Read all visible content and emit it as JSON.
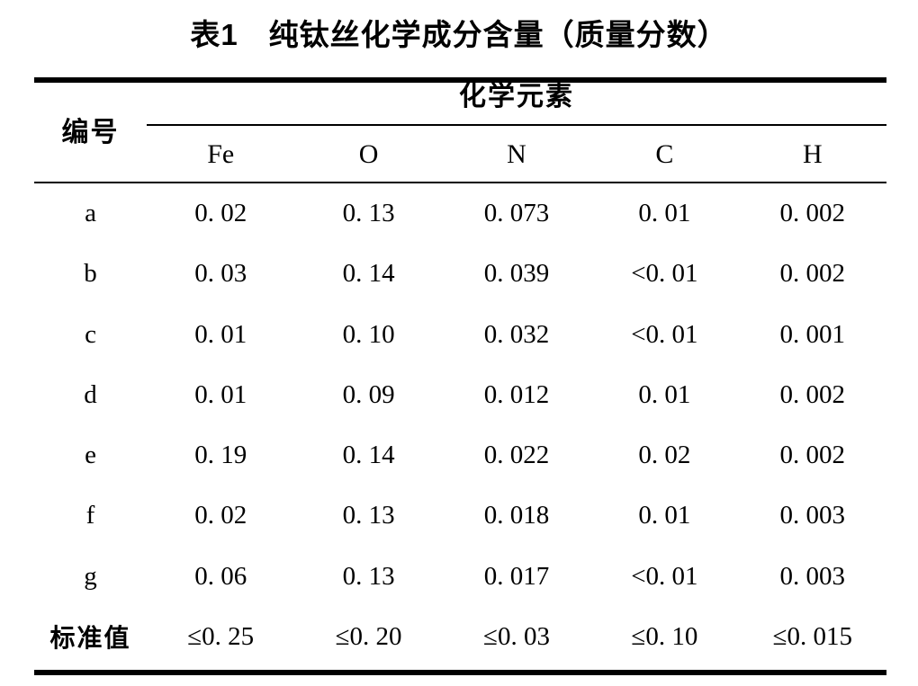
{
  "title": "表1　纯钛丝化学成分含量（质量分数）",
  "table": {
    "corner_label": "编号",
    "group_header": "化学元素",
    "columns": [
      "Fe",
      "O",
      "N",
      "C",
      "H"
    ],
    "rows": [
      {
        "label": "a",
        "values": [
          "0. 02",
          "0. 13",
          "0. 073",
          "0. 01",
          "0. 002"
        ]
      },
      {
        "label": "b",
        "values": [
          "0. 03",
          "0. 14",
          "0. 039",
          "<0. 01",
          "0. 002"
        ]
      },
      {
        "label": "c",
        "values": [
          "0. 01",
          "0. 10",
          "0. 032",
          "<0. 01",
          "0. 001"
        ]
      },
      {
        "label": "d",
        "values": [
          "0. 01",
          "0. 09",
          "0. 012",
          "0. 01",
          "0. 002"
        ]
      },
      {
        "label": "e",
        "values": [
          "0. 19",
          "0. 14",
          "0. 022",
          "0. 02",
          "0. 002"
        ]
      },
      {
        "label": "f",
        "values": [
          "0. 02",
          "0. 13",
          "0. 018",
          "0. 01",
          "0. 003"
        ]
      },
      {
        "label": "g",
        "values": [
          "0. 06",
          "0. 13",
          "0. 017",
          "<0. 01",
          "0. 003"
        ]
      },
      {
        "label": "标准值",
        "values": [
          "≤0. 25",
          "≤0. 20",
          "≤0. 03",
          "≤0. 10",
          "≤0. 015"
        ]
      }
    ]
  }
}
